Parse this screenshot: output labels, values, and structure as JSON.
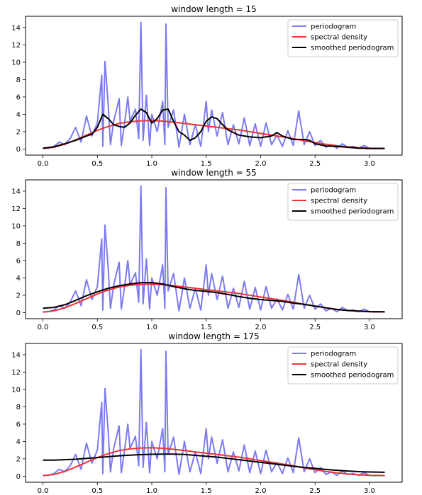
{
  "chart_data": [
    {
      "type": "line",
      "title": "window length = 15",
      "xlim": [
        -0.16,
        3.3
      ],
      "ylim": [
        -0.7,
        15.3
      ],
      "xticks": [
        "0.0",
        "0.5",
        "1.0",
        "1.5",
        "2.0",
        "2.5",
        "3.0"
      ],
      "yticks": [
        "0",
        "2",
        "4",
        "6",
        "8",
        "10",
        "12",
        "14"
      ],
      "legend": "top-right",
      "series": [
        {
          "name": "periodogram",
          "color": "#7b7bf0",
          "x": [
            0.0,
            0.05,
            0.1,
            0.15,
            0.2,
            0.25,
            0.3,
            0.35,
            0.4,
            0.45,
            0.5,
            0.54,
            0.55,
            0.57,
            0.6,
            0.62,
            0.65,
            0.7,
            0.72,
            0.75,
            0.78,
            0.8,
            0.85,
            0.88,
            0.9,
            0.92,
            0.95,
            0.98,
            1.0,
            1.05,
            1.1,
            1.12,
            1.13,
            1.15,
            1.2,
            1.25,
            1.3,
            1.35,
            1.4,
            1.45,
            1.5,
            1.52,
            1.55,
            1.6,
            1.65,
            1.7,
            1.75,
            1.8,
            1.85,
            1.9,
            1.95,
            2.0,
            2.05,
            2.1,
            2.15,
            2.2,
            2.25,
            2.3,
            2.35,
            2.4,
            2.45,
            2.5,
            2.55,
            2.6,
            2.65,
            2.7,
            2.75,
            2.8,
            2.85,
            2.9,
            2.95,
            3.0,
            3.05,
            3.1,
            3.14
          ],
          "y": [
            0.1,
            0.1,
            0.3,
            0.8,
            0.5,
            1.2,
            2.5,
            0.8,
            3.8,
            1.5,
            3.0,
            8.5,
            0.3,
            10.1,
            5.0,
            0.5,
            3.2,
            5.8,
            0.4,
            3.0,
            6.0,
            3.2,
            4.6,
            1.2,
            14.6,
            1.0,
            6.2,
            0.4,
            4.0,
            2.0,
            5.5,
            0.5,
            14.4,
            2.5,
            4.5,
            0.2,
            4.0,
            0.5,
            2.8,
            0.3,
            5.5,
            2.0,
            4.5,
            1.5,
            4.2,
            0.5,
            2.8,
            0.6,
            3.6,
            0.4,
            2.9,
            0.3,
            3.0,
            0.5,
            1.6,
            0.3,
            2.1,
            0.4,
            4.4,
            0.5,
            2.0,
            0.4,
            1.0,
            0.2,
            0.5,
            0.1,
            0.6,
            0.2,
            0.3,
            0.1,
            0.4,
            0.1,
            0.05,
            0.1,
            0.05
          ]
        },
        {
          "name": "spectral density",
          "color": "#ee3333",
          "x": [
            0.0,
            0.1,
            0.2,
            0.3,
            0.4,
            0.5,
            0.6,
            0.7,
            0.8,
            0.9,
            1.0,
            1.1,
            1.2,
            1.3,
            1.4,
            1.5,
            1.6,
            1.7,
            1.8,
            1.9,
            2.0,
            2.1,
            2.2,
            2.3,
            2.4,
            2.5,
            2.6,
            2.7,
            2.8,
            2.9,
            3.0,
            3.14
          ],
          "y": [
            0.05,
            0.2,
            0.55,
            1.05,
            1.6,
            2.15,
            2.6,
            2.95,
            3.15,
            3.25,
            3.28,
            3.22,
            3.1,
            2.95,
            2.8,
            2.65,
            2.5,
            2.35,
            2.2,
            2.0,
            1.8,
            1.6,
            1.4,
            1.2,
            0.95,
            0.75,
            0.55,
            0.38,
            0.25,
            0.15,
            0.1,
            0.08
          ]
        },
        {
          "name": "smoothed periodogram",
          "color": "#000000",
          "x": [
            0.0,
            0.1,
            0.2,
            0.3,
            0.4,
            0.45,
            0.5,
            0.55,
            0.6,
            0.65,
            0.7,
            0.75,
            0.8,
            0.85,
            0.9,
            0.95,
            1.0,
            1.05,
            1.1,
            1.15,
            1.2,
            1.25,
            1.3,
            1.35,
            1.4,
            1.45,
            1.5,
            1.55,
            1.6,
            1.65,
            1.7,
            1.8,
            1.9,
            2.0,
            2.1,
            2.15,
            2.2,
            2.3,
            2.4,
            2.45,
            2.5,
            2.6,
            2.7,
            2.8,
            2.9,
            3.0,
            3.14
          ],
          "y": [
            0.1,
            0.25,
            0.6,
            1.0,
            1.5,
            1.7,
            2.5,
            4.0,
            3.5,
            2.8,
            2.6,
            2.5,
            3.0,
            3.9,
            4.6,
            4.2,
            3.0,
            3.5,
            4.5,
            4.6,
            3.2,
            2.0,
            1.6,
            1.0,
            1.3,
            2.0,
            3.2,
            3.7,
            3.5,
            2.8,
            2.2,
            1.6,
            1.4,
            1.3,
            1.5,
            1.9,
            1.5,
            1.1,
            1.1,
            1.0,
            0.6,
            0.35,
            0.3,
            0.2,
            0.1,
            0.05,
            0.05
          ]
        }
      ]
    },
    {
      "type": "line",
      "title": "window length = 55",
      "xlim": [
        -0.16,
        3.3
      ],
      "ylim": [
        -0.7,
        15.3
      ],
      "xticks": [
        "0.0",
        "0.5",
        "1.0",
        "1.5",
        "2.0",
        "2.5",
        "3.0"
      ],
      "yticks": [
        "0",
        "2",
        "4",
        "6",
        "8",
        "10",
        "12",
        "14"
      ],
      "legend": "top-right",
      "series": [
        {
          "name": "periodogram",
          "color": "#7b7bf0",
          "x": [
            0.0,
            0.05,
            0.1,
            0.15,
            0.2,
            0.25,
            0.3,
            0.35,
            0.4,
            0.45,
            0.5,
            0.54,
            0.55,
            0.57,
            0.6,
            0.62,
            0.65,
            0.7,
            0.72,
            0.75,
            0.78,
            0.8,
            0.85,
            0.88,
            0.9,
            0.92,
            0.95,
            0.98,
            1.0,
            1.05,
            1.1,
            1.12,
            1.13,
            1.15,
            1.2,
            1.25,
            1.3,
            1.35,
            1.4,
            1.45,
            1.5,
            1.52,
            1.55,
            1.6,
            1.65,
            1.7,
            1.75,
            1.8,
            1.85,
            1.9,
            1.95,
            2.0,
            2.05,
            2.1,
            2.15,
            2.2,
            2.25,
            2.3,
            2.35,
            2.4,
            2.45,
            2.5,
            2.55,
            2.6,
            2.65,
            2.7,
            2.75,
            2.8,
            2.85,
            2.9,
            2.95,
            3.0,
            3.05,
            3.1,
            3.14
          ],
          "y": [
            0.1,
            0.1,
            0.3,
            0.8,
            0.5,
            1.2,
            2.5,
            0.8,
            3.8,
            1.5,
            3.0,
            8.5,
            0.3,
            10.1,
            5.0,
            0.5,
            3.2,
            5.8,
            0.4,
            3.0,
            6.0,
            3.2,
            4.6,
            1.2,
            14.6,
            1.0,
            6.2,
            0.4,
            4.0,
            2.0,
            5.5,
            0.5,
            14.4,
            2.5,
            4.5,
            0.2,
            4.0,
            0.5,
            2.8,
            0.3,
            5.5,
            2.0,
            4.5,
            1.5,
            4.2,
            0.5,
            2.8,
            0.6,
            3.6,
            0.4,
            2.9,
            0.3,
            3.0,
            0.5,
            1.6,
            0.3,
            2.1,
            0.4,
            4.4,
            0.5,
            2.0,
            0.4,
            1.0,
            0.2,
            0.5,
            0.1,
            0.6,
            0.2,
            0.3,
            0.1,
            0.4,
            0.1,
            0.05,
            0.1,
            0.05
          ]
        },
        {
          "name": "spectral density",
          "color": "#ee3333",
          "x": [
            0.0,
            0.1,
            0.2,
            0.3,
            0.4,
            0.5,
            0.6,
            0.7,
            0.8,
            0.9,
            1.0,
            1.1,
            1.2,
            1.3,
            1.4,
            1.5,
            1.6,
            1.7,
            1.8,
            1.9,
            2.0,
            2.1,
            2.2,
            2.3,
            2.4,
            2.5,
            2.6,
            2.7,
            2.8,
            2.9,
            3.0,
            3.14
          ],
          "y": [
            0.05,
            0.2,
            0.55,
            1.05,
            1.6,
            2.15,
            2.6,
            2.95,
            3.15,
            3.25,
            3.28,
            3.22,
            3.1,
            2.95,
            2.8,
            2.65,
            2.5,
            2.35,
            2.2,
            2.0,
            1.8,
            1.6,
            1.4,
            1.2,
            0.95,
            0.75,
            0.55,
            0.38,
            0.25,
            0.15,
            0.1,
            0.08
          ]
        },
        {
          "name": "smoothed periodogram",
          "color": "#000000",
          "x": [
            0.0,
            0.1,
            0.2,
            0.3,
            0.4,
            0.5,
            0.6,
            0.7,
            0.8,
            0.9,
            1.0,
            1.1,
            1.2,
            1.3,
            1.4,
            1.5,
            1.6,
            1.7,
            1.8,
            1.9,
            2.0,
            2.1,
            2.2,
            2.3,
            2.4,
            2.5,
            2.6,
            2.7,
            2.8,
            2.9,
            3.0,
            3.14
          ],
          "y": [
            0.5,
            0.6,
            0.9,
            1.4,
            1.95,
            2.4,
            2.8,
            3.1,
            3.3,
            3.45,
            3.45,
            3.3,
            3.0,
            2.75,
            2.55,
            2.45,
            2.3,
            2.1,
            1.85,
            1.65,
            1.5,
            1.4,
            1.3,
            1.1,
            0.95,
            0.75,
            0.55,
            0.35,
            0.25,
            0.18,
            0.12,
            0.1
          ]
        }
      ]
    },
    {
      "type": "line",
      "title": "window length = 175",
      "xlim": [
        -0.16,
        3.3
      ],
      "ylim": [
        -0.7,
        15.3
      ],
      "xticks": [
        "0.0",
        "0.5",
        "1.0",
        "1.5",
        "2.0",
        "2.5",
        "3.0"
      ],
      "yticks": [
        "0",
        "2",
        "4",
        "6",
        "8",
        "10",
        "12",
        "14"
      ],
      "legend": "top-right",
      "series": [
        {
          "name": "periodogram",
          "color": "#7b7bf0",
          "x": [
            0.0,
            0.05,
            0.1,
            0.15,
            0.2,
            0.25,
            0.3,
            0.35,
            0.4,
            0.45,
            0.5,
            0.54,
            0.55,
            0.57,
            0.6,
            0.62,
            0.65,
            0.7,
            0.72,
            0.75,
            0.78,
            0.8,
            0.85,
            0.88,
            0.9,
            0.92,
            0.95,
            0.98,
            1.0,
            1.05,
            1.1,
            1.12,
            1.13,
            1.15,
            1.2,
            1.25,
            1.3,
            1.35,
            1.4,
            1.45,
            1.5,
            1.52,
            1.55,
            1.6,
            1.65,
            1.7,
            1.75,
            1.8,
            1.85,
            1.9,
            1.95,
            2.0,
            2.05,
            2.1,
            2.15,
            2.2,
            2.25,
            2.3,
            2.35,
            2.4,
            2.45,
            2.5,
            2.55,
            2.6,
            2.65,
            2.7,
            2.75,
            2.8,
            2.85,
            2.9,
            2.95,
            3.0,
            3.05,
            3.1,
            3.14
          ],
          "y": [
            0.1,
            0.1,
            0.3,
            0.8,
            0.5,
            1.2,
            2.5,
            0.8,
            3.8,
            1.5,
            3.0,
            8.5,
            0.3,
            10.1,
            5.0,
            0.5,
            3.2,
            5.8,
            0.4,
            3.0,
            6.0,
            3.2,
            4.6,
            1.2,
            14.6,
            1.0,
            6.2,
            0.4,
            4.0,
            2.0,
            5.5,
            0.5,
            14.4,
            2.5,
            4.5,
            0.2,
            4.0,
            0.5,
            2.8,
            0.3,
            5.5,
            2.0,
            4.5,
            1.5,
            4.2,
            0.5,
            2.8,
            0.6,
            3.6,
            0.4,
            2.9,
            0.3,
            3.0,
            0.5,
            1.6,
            0.3,
            2.1,
            0.4,
            4.4,
            0.5,
            2.0,
            0.4,
            1.0,
            0.2,
            0.5,
            0.1,
            0.6,
            0.2,
            0.3,
            0.1,
            0.4,
            0.1,
            0.05,
            0.1,
            0.05
          ]
        },
        {
          "name": "spectral density",
          "color": "#ee3333",
          "x": [
            0.0,
            0.1,
            0.2,
            0.3,
            0.4,
            0.5,
            0.6,
            0.7,
            0.8,
            0.9,
            1.0,
            1.1,
            1.2,
            1.3,
            1.4,
            1.5,
            1.6,
            1.7,
            1.8,
            1.9,
            2.0,
            2.1,
            2.2,
            2.3,
            2.4,
            2.5,
            2.6,
            2.7,
            2.8,
            2.9,
            3.0,
            3.14
          ],
          "y": [
            0.05,
            0.2,
            0.55,
            1.05,
            1.6,
            2.15,
            2.6,
            2.95,
            3.15,
            3.25,
            3.28,
            3.22,
            3.1,
            2.95,
            2.8,
            2.65,
            2.5,
            2.35,
            2.2,
            2.0,
            1.8,
            1.6,
            1.4,
            1.2,
            0.95,
            0.75,
            0.55,
            0.38,
            0.25,
            0.15,
            0.1,
            0.08
          ]
        },
        {
          "name": "smoothed periodogram",
          "color": "#000000",
          "x": [
            0.0,
            0.1,
            0.2,
            0.3,
            0.4,
            0.5,
            0.6,
            0.7,
            0.8,
            0.9,
            1.0,
            1.1,
            1.2,
            1.3,
            1.4,
            1.5,
            1.6,
            1.7,
            1.8,
            1.9,
            2.0,
            2.1,
            2.2,
            2.3,
            2.4,
            2.5,
            2.6,
            2.7,
            2.8,
            2.9,
            3.0,
            3.14
          ],
          "y": [
            1.85,
            1.85,
            1.9,
            1.95,
            2.05,
            2.15,
            2.25,
            2.35,
            2.42,
            2.48,
            2.52,
            2.55,
            2.55,
            2.5,
            2.4,
            2.3,
            2.2,
            2.05,
            1.9,
            1.75,
            1.6,
            1.45,
            1.3,
            1.15,
            1.0,
            0.9,
            0.78,
            0.68,
            0.6,
            0.52,
            0.48,
            0.45
          ]
        }
      ]
    }
  ]
}
